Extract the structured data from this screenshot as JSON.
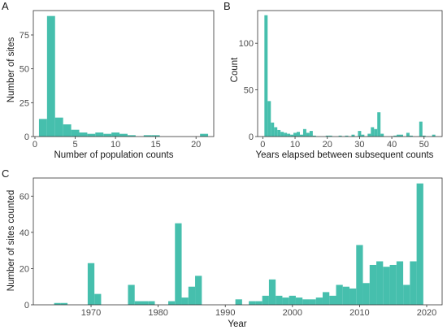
{
  "colors": {
    "bar": "#46BFAD",
    "axis": "#333333",
    "tick_text": "#4d4d4d"
  },
  "chart_data": [
    {
      "panel": "A",
      "type": "bar",
      "xlabel": "Number of population counts",
      "ylabel": "Number of sites",
      "xlim": [
        -0.2,
        22.2
      ],
      "ylim": [
        0,
        93
      ],
      "xticks": [
        0,
        5,
        10,
        15,
        20
      ],
      "yticks": [
        0,
        25,
        50,
        75
      ],
      "bin_width": 1,
      "bars": [
        {
          "x": 1,
          "value": 13
        },
        {
          "x": 2,
          "value": 89
        },
        {
          "x": 3,
          "value": 14
        },
        {
          "x": 4,
          "value": 9
        },
        {
          "x": 5,
          "value": 5
        },
        {
          "x": 6,
          "value": 3
        },
        {
          "x": 7,
          "value": 2
        },
        {
          "x": 8,
          "value": 3
        },
        {
          "x": 9,
          "value": 2
        },
        {
          "x": 10,
          "value": 3
        },
        {
          "x": 11,
          "value": 2
        },
        {
          "x": 12,
          "value": 1
        },
        {
          "x": 14,
          "value": 1
        },
        {
          "x": 15,
          "value": 1
        },
        {
          "x": 21,
          "value": 2
        }
      ]
    },
    {
      "panel": "B",
      "type": "bar",
      "xlabel": "Years elapsed between subsequent counts",
      "ylabel": "Count",
      "xlim": [
        -1.6,
        55.6
      ],
      "ylim": [
        0,
        135
      ],
      "xticks": [
        0,
        10,
        20,
        30,
        40,
        50
      ],
      "yticks": [
        0,
        50,
        100
      ],
      "bin_width": 1,
      "bars": [
        {
          "x": 1,
          "value": 130
        },
        {
          "x": 2,
          "value": 38
        },
        {
          "x": 3,
          "value": 15
        },
        {
          "x": 4,
          "value": 10
        },
        {
          "x": 5,
          "value": 7
        },
        {
          "x": 6,
          "value": 5
        },
        {
          "x": 7,
          "value": 4
        },
        {
          "x": 8,
          "value": 3
        },
        {
          "x": 9,
          "value": 2
        },
        {
          "x": 10,
          "value": 4
        },
        {
          "x": 11,
          "value": 5
        },
        {
          "x": 12,
          "value": 2
        },
        {
          "x": 13,
          "value": 8
        },
        {
          "x": 14,
          "value": 4
        },
        {
          "x": 15,
          "value": 6
        },
        {
          "x": 16,
          "value": 1
        },
        {
          "x": 20,
          "value": 1
        },
        {
          "x": 21,
          "value": 1
        },
        {
          "x": 24,
          "value": 1
        },
        {
          "x": 26,
          "value": 1
        },
        {
          "x": 28,
          "value": 2
        },
        {
          "x": 30,
          "value": 6
        },
        {
          "x": 31,
          "value": 2
        },
        {
          "x": 33,
          "value": 3
        },
        {
          "x": 34,
          "value": 10
        },
        {
          "x": 35,
          "value": 8
        },
        {
          "x": 36,
          "value": 26
        },
        {
          "x": 37,
          "value": 3
        },
        {
          "x": 41,
          "value": 1
        },
        {
          "x": 42,
          "value": 2
        },
        {
          "x": 43,
          "value": 2
        },
        {
          "x": 45,
          "value": 4
        },
        {
          "x": 46,
          "value": 1
        },
        {
          "x": 49,
          "value": 16
        },
        {
          "x": 50,
          "value": 1
        },
        {
          "x": 53,
          "value": 2
        }
      ]
    },
    {
      "panel": "C",
      "type": "bar",
      "xlabel": "Year",
      "ylabel": "Number of sites counted",
      "xlim": [
        1961.4,
        2022.3
      ],
      "ylim": [
        0,
        70
      ],
      "xticks": [
        1970,
        1980,
        1990,
        2000,
        2010,
        2020
      ],
      "yticks": [
        0,
        20,
        40,
        60
      ],
      "bin_width": 1,
      "bars": [
        {
          "x": 1965,
          "value": 1
        },
        {
          "x": 1966,
          "value": 1
        },
        {
          "x": 1970,
          "value": 23
        },
        {
          "x": 1971,
          "value": 6
        },
        {
          "x": 1976,
          "value": 11
        },
        {
          "x": 1977,
          "value": 2
        },
        {
          "x": 1978,
          "value": 2
        },
        {
          "x": 1979,
          "value": 2
        },
        {
          "x": 1982,
          "value": 2
        },
        {
          "x": 1983,
          "value": 45
        },
        {
          "x": 1984,
          "value": 4
        },
        {
          "x": 1985,
          "value": 10
        },
        {
          "x": 1986,
          "value": 16
        },
        {
          "x": 1992,
          "value": 3
        },
        {
          "x": 1994,
          "value": 2
        },
        {
          "x": 1995,
          "value": 2
        },
        {
          "x": 1996,
          "value": 5
        },
        {
          "x": 1997,
          "value": 14
        },
        {
          "x": 1998,
          "value": 5
        },
        {
          "x": 1999,
          "value": 4
        },
        {
          "x": 2000,
          "value": 5
        },
        {
          "x": 2001,
          "value": 4
        },
        {
          "x": 2002,
          "value": 3
        },
        {
          "x": 2003,
          "value": 3
        },
        {
          "x": 2004,
          "value": 4
        },
        {
          "x": 2005,
          "value": 7
        },
        {
          "x": 2006,
          "value": 5
        },
        {
          "x": 2007,
          "value": 11
        },
        {
          "x": 2008,
          "value": 10
        },
        {
          "x": 2009,
          "value": 9
        },
        {
          "x": 2010,
          "value": 33
        },
        {
          "x": 2011,
          "value": 12
        },
        {
          "x": 2012,
          "value": 22
        },
        {
          "x": 2013,
          "value": 24
        },
        {
          "x": 2014,
          "value": 21
        },
        {
          "x": 2015,
          "value": 22
        },
        {
          "x": 2016,
          "value": 24
        },
        {
          "x": 2017,
          "value": 11
        },
        {
          "x": 2018,
          "value": 24
        },
        {
          "x": 2019,
          "value": 67
        }
      ]
    }
  ]
}
